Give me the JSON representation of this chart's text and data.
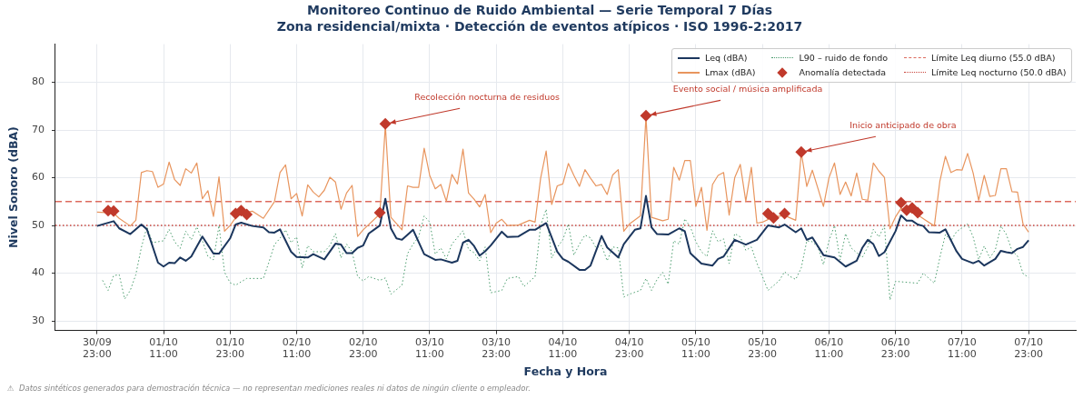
{
  "chart_data": {
    "type": "line",
    "title": "Monitoreo Continuo de Ruido Ambiental — Serie Temporal 7 Días",
    "subtitle": "Zona residencial/mixta · Detección de eventos atípicos · ISO 1996-2:2017",
    "xlabel": "Fecha y Hora",
    "ylabel": "Nivel Sonoro (dBA)",
    "xlim": [
      "--09-30T15:30",
      "--10-08T07:30"
    ],
    "ylim": [
      28,
      88
    ],
    "xticks": [
      {
        "value": "--09-30T23:00",
        "label": "30/09 23:00"
      },
      {
        "value": "--10-01T11:00",
        "label": "01/10 11:00"
      },
      {
        "value": "--10-01T23:00",
        "label": "01/10 23:00"
      },
      {
        "value": "--10-02T11:00",
        "label": "02/10 11:00"
      },
      {
        "value": "--10-02T23:00",
        "label": "02/10 23:00"
      },
      {
        "value": "--10-03T11:00",
        "label": "03/10 11:00"
      },
      {
        "value": "--10-03T23:00",
        "label": "03/10 23:00"
      },
      {
        "value": "--10-04T11:00",
        "label": "04/10 11:00"
      },
      {
        "value": "--10-04T23:00",
        "label": "04/10 23:00"
      },
      {
        "value": "--10-05T11:00",
        "label": "05/10 11:00"
      },
      {
        "value": "--10-05T23:00",
        "label": "05/10 23:00"
      },
      {
        "value": "--10-06T11:00",
        "label": "06/10 11:00"
      },
      {
        "value": "--10-06T23:00",
        "label": "06/10 23:00"
      },
      {
        "value": "--10-07T11:00",
        "label": "07/10 11:00"
      },
      {
        "value": "--10-07T23:00",
        "label": "07/10 23:00"
      }
    ],
    "yticks": [
      30,
      40,
      50,
      60,
      70,
      80
    ],
    "grid": true,
    "legend": "top right",
    "marker": "none",
    "series": [
      {
        "name": "Leq (dBA)",
        "color": "#1b365d",
        "line_style": "solid",
        "x": [
          "--09-30T23:00",
          "--10-01T02:00",
          "--10-01T03:00",
          "--10-01T05:00",
          "--10-01T07:00",
          "--10-01T08:00",
          "--10-01T10:00",
          "--10-01T11:00",
          "--10-01T12:00",
          "--10-01T13:00",
          "--10-01T14:00",
          "--10-01T15:00",
          "--10-01T16:00",
          "--10-01T18:00",
          "--10-01T20:00",
          "--10-01T21:00",
          "--10-01T23:00",
          "--10-02T00:00",
          "--10-02T01:00",
          "--10-02T03:00",
          "--10-02T05:00",
          "--10-02T06:00",
          "--10-02T07:00",
          "--10-02T08:00",
          "--10-02T10:00",
          "--10-02T11:00",
          "--10-02T13:00",
          "--10-02T14:00",
          "--10-02T16:00",
          "--10-02T18:00",
          "--10-02T19:00",
          "--10-02T20:00",
          "--10-02T21:00",
          "--10-02T22:00",
          "--10-02T23:00",
          "--10-03T00:00",
          "--10-03T02:00",
          "--10-03T03:00",
          "--10-03T04:00",
          "--10-03T05:00",
          "--10-03T06:00",
          "--10-03T08:00",
          "--10-03T10:00",
          "--10-03T12:00",
          "--10-03T13:00",
          "--10-03T15:00",
          "--10-03T16:00",
          "--10-03T17:00",
          "--10-03T18:00",
          "--10-03T19:00",
          "--10-03T20:00",
          "--10-03T21:00",
          "--10-03T22:00",
          "--10-04T00:00",
          "--10-04T01:00",
          "--10-04T03:00",
          "--10-04T05:00",
          "--10-04T06:00",
          "--10-04T08:00",
          "--10-04T10:00",
          "--10-04T11:00",
          "--10-04T12:00",
          "--10-04T14:00",
          "--10-04T15:00",
          "--10-04T16:00",
          "--10-04T18:00",
          "--10-04T19:00",
          "--10-04T21:00",
          "--10-04T22:00",
          "--10-05T00:00",
          "--10-05T01:00",
          "--10-05T02:00",
          "--10-05T03:00",
          "--10-05T04:00",
          "--10-05T06:00",
          "--10-05T08:00",
          "--10-05T09:00",
          "--10-05T10:00",
          "--10-05T12:00",
          "--10-05T14:00",
          "--10-05T15:00",
          "--10-05T16:00",
          "--10-05T18:00",
          "--10-05T20:00",
          "--10-05T22:00",
          "--10-06T00:00",
          "--10-06T02:00",
          "--10-06T03:00",
          "--10-06T05:00",
          "--10-06T06:00",
          "--10-06T07:00",
          "--10-06T08:00",
          "--10-06T10:00",
          "--10-06T12:00",
          "--10-06T14:00",
          "--10-06T16:00",
          "--10-06T17:00",
          "--10-06T18:00",
          "--10-06T19:00",
          "--10-06T20:00",
          "--10-06T21:00",
          "--10-06T23:00",
          "--10-07T00:00",
          "--10-07T01:00",
          "--10-07T02:00",
          "--10-07T03:00",
          "--10-07T04:00",
          "--10-07T05:00",
          "--10-07T07:00",
          "--10-07T08:00",
          "--10-07T10:00",
          "--10-07T11:00",
          "--10-07T13:00",
          "--10-07T14:00",
          "--10-07T15:00",
          "--10-07T17:00",
          "--10-07T18:00",
          "--10-07T19:00",
          "--10-07T20:00",
          "--10-07T21:00",
          "--10-07T22:00",
          "--10-07T23:00"
        ],
        "values": [
          49.9,
          50.9,
          49.4,
          48.2,
          50.2,
          49.2,
          42.2,
          41.4,
          42.2,
          42.1,
          43.3,
          42.6,
          43.5,
          47.7,
          44.1,
          44.1,
          47.3,
          50.2,
          50.6,
          49.9,
          49.6,
          48.6,
          48.5,
          49.2,
          44.5,
          43.4,
          43.3,
          44,
          42.9,
          46.2,
          46,
          44.2,
          44.2,
          45.3,
          45.8,
          48.3,
          50,
          55.6,
          49.4,
          47.3,
          47,
          49.1,
          44,
          42.8,
          42.9,
          42.2,
          42.6,
          46.4,
          47,
          45.7,
          43.7,
          44.6,
          45.8,
          48.7,
          47.6,
          47.7,
          49.1,
          49.1,
          50.5,
          44.5,
          43,
          42.4,
          40.7,
          40.7,
          41.6,
          47.8,
          45.4,
          43.3,
          46.1,
          49.1,
          49.4,
          56.2,
          49.6,
          48.2,
          48.1,
          49.4,
          48.8,
          44.2,
          42,
          41.6,
          43,
          43.5,
          47,
          46,
          47,
          50,
          49.6,
          50.2,
          48.6,
          49.4,
          47,
          47.5,
          43.8,
          43.3,
          41.4,
          42.6,
          45.3,
          47,
          46.1,
          43.6,
          44.4,
          48.8,
          52.1,
          51,
          51,
          50.2,
          49.9,
          48.6,
          48.5,
          49.2,
          44.6,
          43,
          42.1,
          42.6,
          41.6,
          43,
          44.7,
          44.4,
          44.2,
          45.1,
          45.5,
          46.9
        ]
      },
      {
        "name": "Lmax (dBA)",
        "color": "#e8955e",
        "line_style": "solid",
        "x": [
          "--09-30T23:00",
          "--10-01T02:00",
          "--10-01T03:00",
          "--10-01T05:00",
          "--10-01T06:00",
          "--10-01T07:00",
          "--10-01T08:00",
          "--10-01T09:00",
          "--10-01T10:00",
          "--10-01T11:00",
          "--10-01T12:00",
          "--10-01T13:00",
          "--10-01T14:00",
          "--10-01T15:00",
          "--10-01T16:00",
          "--10-01T17:00",
          "--10-01T18:00",
          "--10-01T19:00",
          "--10-01T20:00",
          "--10-01T21:00",
          "--10-01T22:00",
          "--10-01T23:00",
          "--10-02T00:00",
          "--10-02T01:00",
          "--10-02T03:00",
          "--10-02T05:00",
          "--10-02T07:00",
          "--10-02T08:00",
          "--10-02T09:00",
          "--10-02T10:00",
          "--10-02T11:00",
          "--10-02T12:00",
          "--10-02T13:00",
          "--10-02T14:00",
          "--10-02T15:00",
          "--10-02T16:00",
          "--10-02T17:00",
          "--10-02T18:00",
          "--10-02T19:00",
          "--10-02T20:00",
          "--10-02T21:00",
          "--10-02T22:00",
          "--10-02T23:00",
          "--10-03T02:00",
          "--10-03T03:00",
          "--10-03T04:00",
          "--10-03T06:00",
          "--10-03T07:00",
          "--10-03T08:00",
          "--10-03T09:00",
          "--10-03T10:00",
          "--10-03T11:00",
          "--10-03T12:00",
          "--10-03T13:00",
          "--10-03T14:00",
          "--10-03T15:00",
          "--10-03T16:00",
          "--10-03T17:00",
          "--10-03T18:00",
          "--10-03T19:00",
          "--10-03T20:00",
          "--10-03T21:00",
          "--10-03T22:00",
          "--10-03T23:00",
          "--10-04T00:00",
          "--10-04T01:00",
          "--10-04T03:00",
          "--10-04T05:00",
          "--10-04T06:00",
          "--10-04T07:00",
          "--10-04T08:00",
          "--10-04T09:00",
          "--10-04T10:00",
          "--10-04T11:00",
          "--10-04T12:00",
          "--10-04T13:00",
          "--10-04T14:00",
          "--10-04T15:00",
          "--10-04T16:00",
          "--10-04T17:00",
          "--10-04T18:00",
          "--10-04T19:00",
          "--10-04T20:00",
          "--10-04T21:00",
          "--10-04T22:00",
          "--10-04T23:00",
          "--10-05T01:00",
          "--10-05T02:00",
          "--10-05T03:00",
          "--10-05T05:00",
          "--10-05T06:00",
          "--10-05T07:00",
          "--10-05T08:00",
          "--10-05T09:00",
          "--10-05T10:00",
          "--10-05T11:00",
          "--10-05T12:00",
          "--10-05T13:00",
          "--10-05T14:00",
          "--10-05T15:00",
          "--10-05T16:00",
          "--10-05T17:00",
          "--10-05T18:00",
          "--10-05T19:00",
          "--10-05T20:00",
          "--10-05T21:00",
          "--10-05T22:00",
          "--10-05T23:00",
          "--10-06T01:00",
          "--10-06T03:00",
          "--10-06T05:00",
          "--10-06T06:00",
          "--10-06T07:00",
          "--10-06T08:00",
          "--10-06T09:00",
          "--10-06T10:00",
          "--10-06T11:00",
          "--10-06T12:00",
          "--10-06T13:00",
          "--10-06T14:00",
          "--10-06T15:00",
          "--10-06T16:00",
          "--10-06T17:00",
          "--10-06T18:00",
          "--10-06T19:00",
          "--10-06T20:00",
          "--10-06T21:00",
          "--10-06T22:00",
          "--10-06T23:00",
          "--10-07T00:00",
          "--10-07T03:00",
          "--10-07T06:00",
          "--10-07T07:00",
          "--10-07T08:00",
          "--10-07T09:00",
          "--10-07T10:00",
          "--10-07T11:00",
          "--10-07T12:00",
          "--10-07T13:00",
          "--10-07T14:00",
          "--10-07T15:00",
          "--10-07T16:00",
          "--10-07T17:00",
          "--10-07T18:00",
          "--10-07T19:00",
          "--10-07T20:00",
          "--10-07T21:00",
          "--10-07T22:00",
          "--10-07T23:00"
        ],
        "values": [
          52.8,
          52.6,
          51.5,
          49.9,
          51.1,
          61.1,
          61.5,
          61.3,
          58,
          58.7,
          63.3,
          59.6,
          58.4,
          61.9,
          61,
          63.1,
          55.6,
          57.3,
          51.9,
          60.2,
          48.8,
          50,
          51.6,
          52.5,
          53,
          51.5,
          55,
          61.1,
          62.7,
          55.6,
          56.7,
          52,
          58.5,
          57,
          56,
          57.4,
          60.1,
          59.1,
          53.4,
          56.8,
          58.4,
          47.7,
          49.1,
          52.4,
          71,
          51.7,
          49.1,
          58.3,
          58,
          58,
          66.2,
          60.5,
          57.7,
          58.6,
          55.1,
          60.7,
          58.7,
          66,
          56.8,
          55.5,
          53.9,
          56.5,
          48.5,
          50.5,
          51.3,
          50,
          50.1,
          51.1,
          50.7,
          59.9,
          65.6,
          54.4,
          58.3,
          58.7,
          63,
          60.5,
          58.2,
          61.7,
          59.9,
          58.3,
          58.6,
          56.5,
          60.6,
          61.7,
          48.8,
          50.3,
          52,
          72.8,
          51.7,
          51,
          51.3,
          62.2,
          59.5,
          63.6,
          63.6,
          54,
          58,
          49,
          58.6,
          60.5,
          61.1,
          52.2,
          60,
          62.8,
          55.1,
          62.2,
          50.5,
          50.7,
          51.8,
          52.1,
          51.1,
          65.3,
          58.2,
          61.6,
          57.8,
          54,
          60,
          63.1,
          56.5,
          59.1,
          56.2,
          61,
          55.5,
          55.3,
          63.1,
          61.4,
          60.1,
          49.3,
          51.8,
          53.6,
          52.2,
          49.9,
          59.3,
          64.5,
          61.1,
          61.7,
          61.6,
          65.1,
          61,
          55.3,
          60.5,
          56.1,
          56.3,
          61.9,
          61.9,
          57.1,
          57,
          50.3,
          48.6
        ]
      },
      {
        "name": "L90 – ruido de fondo",
        "color": "#4a9c6d",
        "line_style": "dotted",
        "x": [
          "--10-01T00:00",
          "--10-01T01:00",
          "--10-01T02:00",
          "--10-01T03:00",
          "--10-01T04:00",
          "--10-01T05:00",
          "--10-01T06:00",
          "--10-01T07:00",
          "--10-01T08:00",
          "--10-01T09:00",
          "--10-01T11:00",
          "--10-01T12:00",
          "--10-01T13:00",
          "--10-01T14:00",
          "--10-01T15:00",
          "--10-01T16:00",
          "--10-01T17:00",
          "--10-01T18:00",
          "--10-01T19:00",
          "--10-01T20:00",
          "--10-01T21:00",
          "--10-01T22:00",
          "--10-01T23:00",
          "--10-02T00:00",
          "--10-02T02:00",
          "--10-02T05:00",
          "--10-02T06:00",
          "--10-02T07:00",
          "--10-02T08:00",
          "--10-02T09:00",
          "--10-02T10:00",
          "--10-02T11:00",
          "--10-02T12:00",
          "--10-02T13:00",
          "--10-02T14:00",
          "--10-02T16:00",
          "--10-02T17:00",
          "--10-02T18:00",
          "--10-02T19:00",
          "--10-02T20:00",
          "--10-02T21:00",
          "--10-02T22:00",
          "--10-02T23:00",
          "--10-03T00:00",
          "--10-03T02:00",
          "--10-03T03:00",
          "--10-03T04:00",
          "--10-03T06:00",
          "--10-03T07:00",
          "--10-03T08:00",
          "--10-03T09:00",
          "--10-03T10:00",
          "--10-03T11:00",
          "--10-03T12:00",
          "--10-03T13:00",
          "--10-03T14:00",
          "--10-03T15:00",
          "--10-03T17:00",
          "--10-03T18:00",
          "--10-03T19:00",
          "--10-03T20:00",
          "--10-03T21:00",
          "--10-03T22:00",
          "--10-04T00:00",
          "--10-04T01:00",
          "--10-04T03:00",
          "--10-04T04:00",
          "--10-04T06:00",
          "--10-04T07:00",
          "--10-04T08:00",
          "--10-04T09:00",
          "--10-04T10:00",
          "--10-04T11:00",
          "--10-04T12:00",
          "--10-04T13:00",
          "--10-04T14:00",
          "--10-04T15:00",
          "--10-04T16:00",
          "--10-04T17:00",
          "--10-04T18:00",
          "--10-04T19:00",
          "--10-04T20:00",
          "--10-04T21:00",
          "--10-04T22:00",
          "--10-04T23:00",
          "--10-05T01:00",
          "--10-05T02:00",
          "--10-05T03:00",
          "--10-05T04:00",
          "--10-05T05:00",
          "--10-05T06:00",
          "--10-05T07:00",
          "--10-05T08:00",
          "--10-05T09:00",
          "--10-05T10:00",
          "--10-05T11:00",
          "--10-05T12:00",
          "--10-05T13:00",
          "--10-05T14:00",
          "--10-05T15:00",
          "--10-05T16:00",
          "--10-05T17:00",
          "--10-05T18:00",
          "--10-05T19:00",
          "--10-05T20:00",
          "--10-05T21:00",
          "--10-05T22:00",
          "--10-05T23:00",
          "--10-06T00:00",
          "--10-06T02:00",
          "--10-06T03:00",
          "--10-06T04:00",
          "--10-06T05:00",
          "--10-06T06:00",
          "--10-06T07:00",
          "--10-06T08:00",
          "--10-06T09:00",
          "--10-06T10:00",
          "--10-06T11:00",
          "--10-06T12:00",
          "--10-06T13:00",
          "--10-06T14:00",
          "--10-06T15:00",
          "--10-06T17:00",
          "--10-06T18:00",
          "--10-06T19:00",
          "--10-06T20:00",
          "--10-06T21:00",
          "--10-06T22:00",
          "--10-06T23:00",
          "--10-07T03:00",
          "--10-07T04:00",
          "--10-07T06:00",
          "--10-07T07:00",
          "--10-07T08:00",
          "--10-07T09:00",
          "--10-07T10:00",
          "--10-07T12:00",
          "--10-07T13:00",
          "--10-07T14:00",
          "--10-07T15:00",
          "--10-07T16:00",
          "--10-07T17:00",
          "--10-07T18:00",
          "--10-07T19:00",
          "--10-07T20:00",
          "--10-07T21:00",
          "--10-07T22:00",
          "--10-07T23:00"
        ],
        "values": [
          38.5,
          36.4,
          39.5,
          39.7,
          34.6,
          36.4,
          39.7,
          45.4,
          49.7,
          46.4,
          46.8,
          49.2,
          46.6,
          45.2,
          48.8,
          47,
          49.7,
          46.8,
          43.5,
          42.8,
          50,
          40.2,
          38,
          37.5,
          38.9,
          38.9,
          42.3,
          46,
          47.3,
          49.1,
          46.4,
          47.6,
          41.1,
          45.8,
          44.5,
          44.5,
          45.8,
          48.3,
          43.2,
          46.1,
          44.5,
          39.3,
          38.4,
          39.3,
          38.5,
          39,
          35.6,
          37.5,
          44.1,
          46.1,
          47.6,
          52,
          50.7,
          44,
          45.3,
          43,
          46.1,
          48.9,
          45,
          44.3,
          42.6,
          45.5,
          35.9,
          36.4,
          38.9,
          39.3,
          37.2,
          39.3,
          50,
          53.4,
          43.2,
          45.4,
          47,
          50.3,
          43.8,
          46.1,
          48,
          47.4,
          45.3,
          45.8,
          42.6,
          45.5,
          45.3,
          35,
          35.6,
          36.4,
          38.9,
          36.4,
          38.7,
          40.2,
          37.7,
          46.8,
          46.1,
          51.4,
          49.7,
          46.6,
          44.5,
          43.5,
          48.9,
          46.6,
          47.2,
          42,
          48.3,
          47.6,
          44.8,
          45.5,
          42.1,
          39.3,
          36.4,
          38.4,
          40.3,
          39.3,
          38.7,
          41.1,
          46.8,
          46.6,
          45.5,
          41.8,
          46.8,
          50,
          42.8,
          48.3,
          45.3,
          43.3,
          45.5,
          49.2,
          47.6,
          50,
          34.4,
          38.3,
          37.9,
          40,
          37.9,
          43.3,
          48.1,
          46.8,
          48.7,
          50.3,
          47.6,
          42.9,
          45.7,
          43.2,
          44.9,
          49.9,
          48.1,
          44.7,
          43.6,
          39.9,
          39.1
        ]
      },
      {
        "name": "Anomalía detectada",
        "type": "scatter",
        "color": "#c0392b",
        "marker": "diamond",
        "x": [
          "--10-01T01:00",
          "--10-01T02:00",
          "--10-02T00:00",
          "--10-02T01:00",
          "--10-02T02:00",
          "--10-03T02:00",
          "--10-03T03:00",
          "--10-05T02:00",
          "--10-06T00:00",
          "--10-06T01:00",
          "--10-06T03:00",
          "--10-06T06:00",
          "--10-07T00:00",
          "--10-07T01:00",
          "--10-07T02:00",
          "--10-07T03:00"
        ],
        "values": [
          53.1,
          53,
          52.5,
          53.1,
          52.3,
          52.7,
          71.3,
          73,
          52.5,
          51.6,
          52.5,
          65.4,
          54.8,
          53.2,
          53.7,
          52.7
        ]
      }
    ],
    "ref_lines": [
      {
        "axis": "y",
        "value": 55,
        "label": "Límite Leq diurno (55.0 dBA)",
        "color": "#dd6b5e",
        "line_style": "dashed"
      },
      {
        "axis": "y",
        "value": 50,
        "label": "Límite Leq nocturno (50.0 dBA)",
        "color": "#c9443c",
        "line_style": "dotted"
      }
    ],
    "annotations": [
      {
        "text": "Recolección nocturna de residuos",
        "x": "--10-03T03:00",
        "y": 71.3
      },
      {
        "text": "Evento social / música amplificada",
        "x": "--10-05T02:00",
        "y": 73
      },
      {
        "text": "Inicio anticipado de obra",
        "x": "--10-06T06:00",
        "y": 65.4
      },
      "⚠  Datos sintéticos generados para demostración técnica — no representan mediciones reales ni datos de ningún cliente o empleador."
    ]
  }
}
